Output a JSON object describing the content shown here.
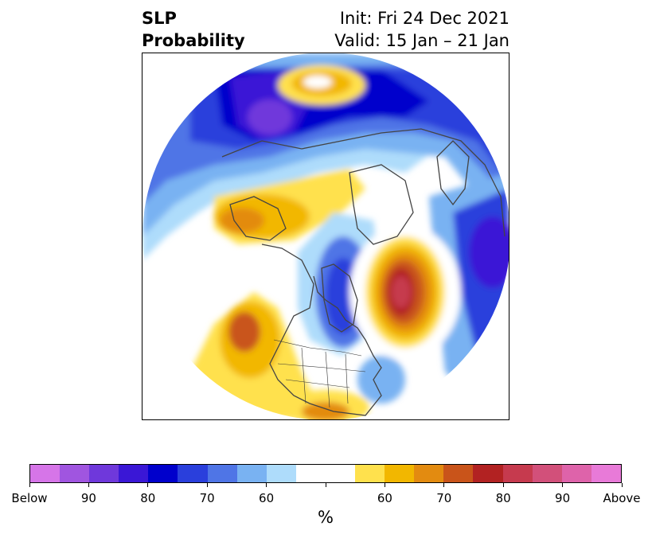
{
  "title": {
    "left_line1": "SLP",
    "left_line2": "Probability",
    "right_line1": "Init: Fri 24 Dec 2021",
    "right_line2": "Valid: 15 Jan – 21 Jan"
  },
  "colorbar": {
    "unit": "%",
    "colors": [
      "#d675e8",
      "#a055e0",
      "#6f38db",
      "#3a17d6",
      "#0000cc",
      "#2a3fdc",
      "#4f75e6",
      "#79b2f2",
      "#aedcfb",
      "#ffffff",
      "#ffffff",
      "#ffe14d",
      "#f2b700",
      "#e38b10",
      "#c9541a",
      "#b22222",
      "#c63a4e",
      "#d2507a",
      "#de63aa",
      "#e87ad8"
    ],
    "tick_labels": [
      "Below",
      "90",
      "80",
      "70",
      "60",
      "",
      "60",
      "70",
      "80",
      "90",
      "Above"
    ]
  },
  "map": {
    "projection": "north-polar-stereographic",
    "variable": "sea-level-pressure probability",
    "anomalies": [
      {
        "region": "Arctic / Siberia",
        "category": "below",
        "max_percent": 90
      },
      {
        "region": "Greenland",
        "category": "above",
        "max_percent": 80
      },
      {
        "region": "Alaska / Bering",
        "category": "above",
        "max_percent": 70
      },
      {
        "region": "Hudson Bay / Eastern Canada",
        "category": "below",
        "max_percent": 80
      },
      {
        "region": "North Atlantic",
        "category": "above",
        "max_percent": 85
      },
      {
        "region": "Northern Europe / Scandinavia",
        "category": "below",
        "max_percent": 80
      },
      {
        "region": "Western United States",
        "category": "above",
        "max_percent": 70
      }
    ]
  }
}
